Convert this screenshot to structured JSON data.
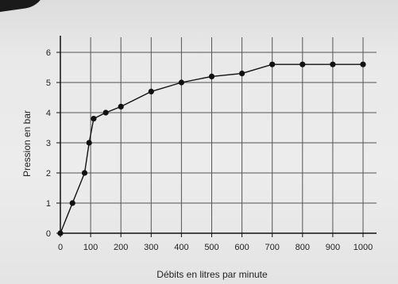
{
  "chart_data": {
    "type": "line",
    "title": "",
    "xlabel": "Débits en litres par minute",
    "ylabel": "Pression en bar",
    "x_ticks": [
      0,
      100,
      200,
      300,
      400,
      500,
      600,
      700,
      800,
      900,
      1000
    ],
    "y_ticks": [
      0,
      1,
      2,
      3,
      4,
      5,
      6
    ],
    "xlim": [
      0,
      1000
    ],
    "ylim": [
      0,
      6.4
    ],
    "grid": true,
    "legend": "none",
    "series": [
      {
        "x": [
          0,
          40,
          80,
          95,
          110,
          150,
          200,
          300,
          400,
          500,
          600,
          700,
          800,
          900,
          1000
        ],
        "y": [
          0,
          1.0,
          2.0,
          3.0,
          3.8,
          4.0,
          4.2,
          4.7,
          5.0,
          5.2,
          5.3,
          5.6,
          5.6,
          5.6,
          5.6
        ]
      }
    ],
    "colors": {
      "line": "#111111",
      "grid": "#555555",
      "axis": "#111111"
    }
  }
}
